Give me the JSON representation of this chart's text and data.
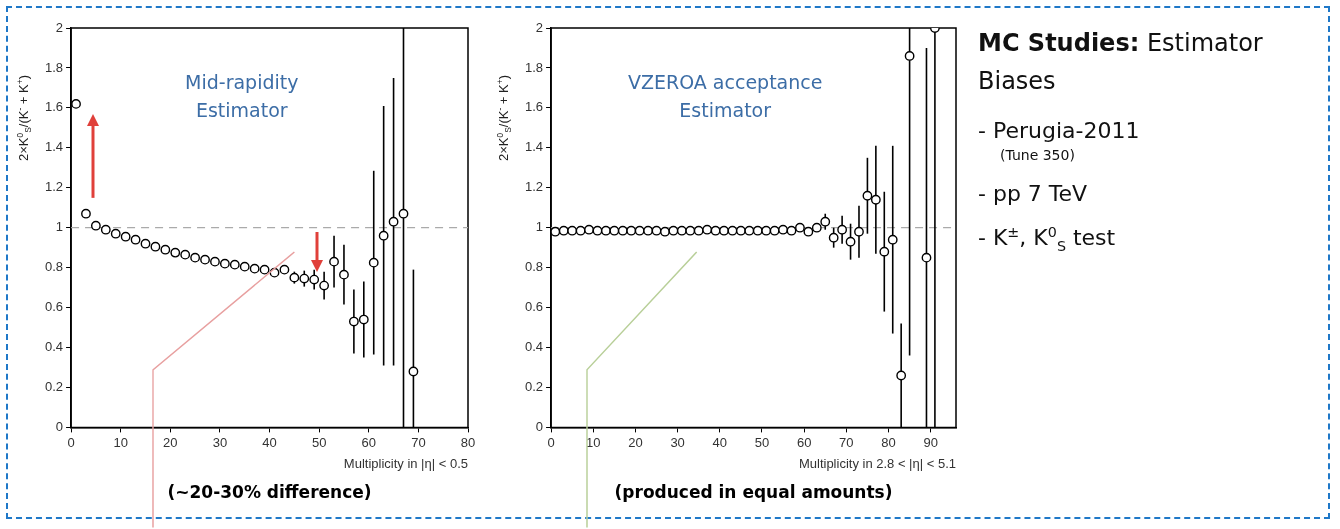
{
  "chart_data": [
    {
      "type": "scatter",
      "ylabel": "2×K$^{0}$$_{S}$/(K$^{-}$ + K$^{+}$)",
      "xlabel": "Multiplicity in |η| < 0.5",
      "annotations": [
        "Mid-rapidity\nEstimator",
        "(~20-30% difference)"
      ],
      "x": [
        1,
        3,
        5,
        7,
        9,
        11,
        13,
        15,
        17,
        19,
        21,
        23,
        25,
        27,
        29,
        31,
        33,
        35,
        37,
        39,
        41,
        43,
        45,
        47,
        49,
        51,
        53,
        55,
        57,
        59,
        61,
        63,
        65,
        67,
        69
      ],
      "values": [
        1.62,
        1.07,
        1.01,
        0.99,
        0.97,
        0.955,
        0.94,
        0.92,
        0.905,
        0.89,
        0.875,
        0.865,
        0.85,
        0.84,
        0.83,
        0.82,
        0.815,
        0.805,
        0.795,
        0.79,
        0.775,
        0.79,
        0.75,
        0.745,
        0.74,
        0.71,
        0.83,
        0.765,
        0.53,
        0.54,
        0.825,
        0.96,
        1.03,
        1.07,
        0.28
      ],
      "errors": [
        null,
        null,
        null,
        null,
        null,
        null,
        null,
        null,
        null,
        null,
        null,
        null,
        null,
        null,
        null,
        null,
        null,
        null,
        null,
        null,
        null,
        null,
        0.03,
        0.04,
        0.05,
        0.07,
        0.13,
        0.15,
        0.16,
        0.19,
        0.46,
        0.65,
        0.72,
        [
          0,
          2
        ],
        [
          0,
          0.79
        ]
      ],
      "color": "#000000",
      "marker": "circle",
      "xlim": [
        0,
        80
      ],
      "xticks": [
        0,
        10,
        20,
        30,
        40,
        50,
        60,
        70,
        80
      ],
      "ylim": [
        0,
        2
      ],
      "yticks": [
        0,
        0.2,
        0.4,
        0.6,
        0.8,
        1,
        1.2,
        1.4,
        1.6,
        1.8,
        2
      ],
      "ref_lines": [
        {
          "axis": "y",
          "value": 1,
          "color": "#aaaaaa",
          "line_style": "dashed"
        }
      ],
      "grid": false,
      "legend": false
    },
    {
      "type": "scatter",
      "ylabel": "2×K$^{0}$$_{S}$/(K$^{-}$ + K$^{+}$)",
      "xlabel": "Multiplicity in 2.8 < |η| < 5.1",
      "annotations": [
        "VZEROA acceptance\nEstimator",
        "(produced in equal amounts)"
      ],
      "x": [
        1,
        3,
        5,
        7,
        9,
        11,
        13,
        15,
        17,
        19,
        21,
        23,
        25,
        27,
        29,
        31,
        33,
        35,
        37,
        39,
        41,
        43,
        45,
        47,
        49,
        51,
        53,
        55,
        57,
        59,
        61,
        63,
        65,
        67,
        69,
        71,
        73,
        75,
        77,
        79,
        81,
        83,
        85,
        89,
        91
      ],
      "values": [
        0.98,
        0.985,
        0.985,
        0.985,
        0.99,
        0.985,
        0.985,
        0.985,
        0.985,
        0.985,
        0.985,
        0.985,
        0.985,
        0.98,
        0.985,
        0.985,
        0.985,
        0.985,
        0.99,
        0.985,
        0.985,
        0.985,
        0.985,
        0.985,
        0.985,
        0.985,
        0.985,
        0.99,
        0.985,
        1.0,
        0.98,
        1.0,
        1.03,
        0.95,
        0.99,
        0.93,
        0.98,
        1.16,
        1.14,
        0.88,
        0.94,
        0.26,
        1.86,
        0.85,
        2.0
      ],
      "errors": [
        null,
        null,
        null,
        null,
        null,
        null,
        null,
        null,
        null,
        null,
        null,
        null,
        null,
        null,
        null,
        null,
        null,
        null,
        null,
        null,
        null,
        null,
        null,
        null,
        null,
        null,
        null,
        null,
        null,
        null,
        null,
        0.02,
        0.04,
        0.05,
        0.07,
        0.09,
        0.13,
        0.19,
        0.27,
        0.3,
        0.47,
        [
          0,
          0.52
        ],
        [
          0.36,
          2
        ],
        [
          0,
          1.9
        ],
        [
          0,
          2
        ]
      ],
      "color": "#000000",
      "marker": "circle",
      "xlim": [
        0,
        96
      ],
      "xticks": [
        0,
        10,
        20,
        30,
        40,
        50,
        60,
        70,
        80,
        90
      ],
      "ylim": [
        0,
        2
      ],
      "yticks": [
        0,
        0.2,
        0.4,
        0.6,
        0.8,
        1,
        1.2,
        1.4,
        1.6,
        1.8,
        2
      ],
      "ref_lines": [
        {
          "axis": "y",
          "value": 1,
          "color": "#aaaaaa",
          "line_style": "dashed"
        }
      ],
      "grid": false,
      "legend": false
    },
    {
      "type": "other",
      "title": "MC Studies:",
      "subtitle": "Estimator Biases",
      "annotations": [
        "- Perugia-2011",
        "(Tune 350)",
        "- pp 7 TeV",
        "- K$^{±}$, K$^{0}$$_{S}$ test"
      ]
    }
  ]
}
